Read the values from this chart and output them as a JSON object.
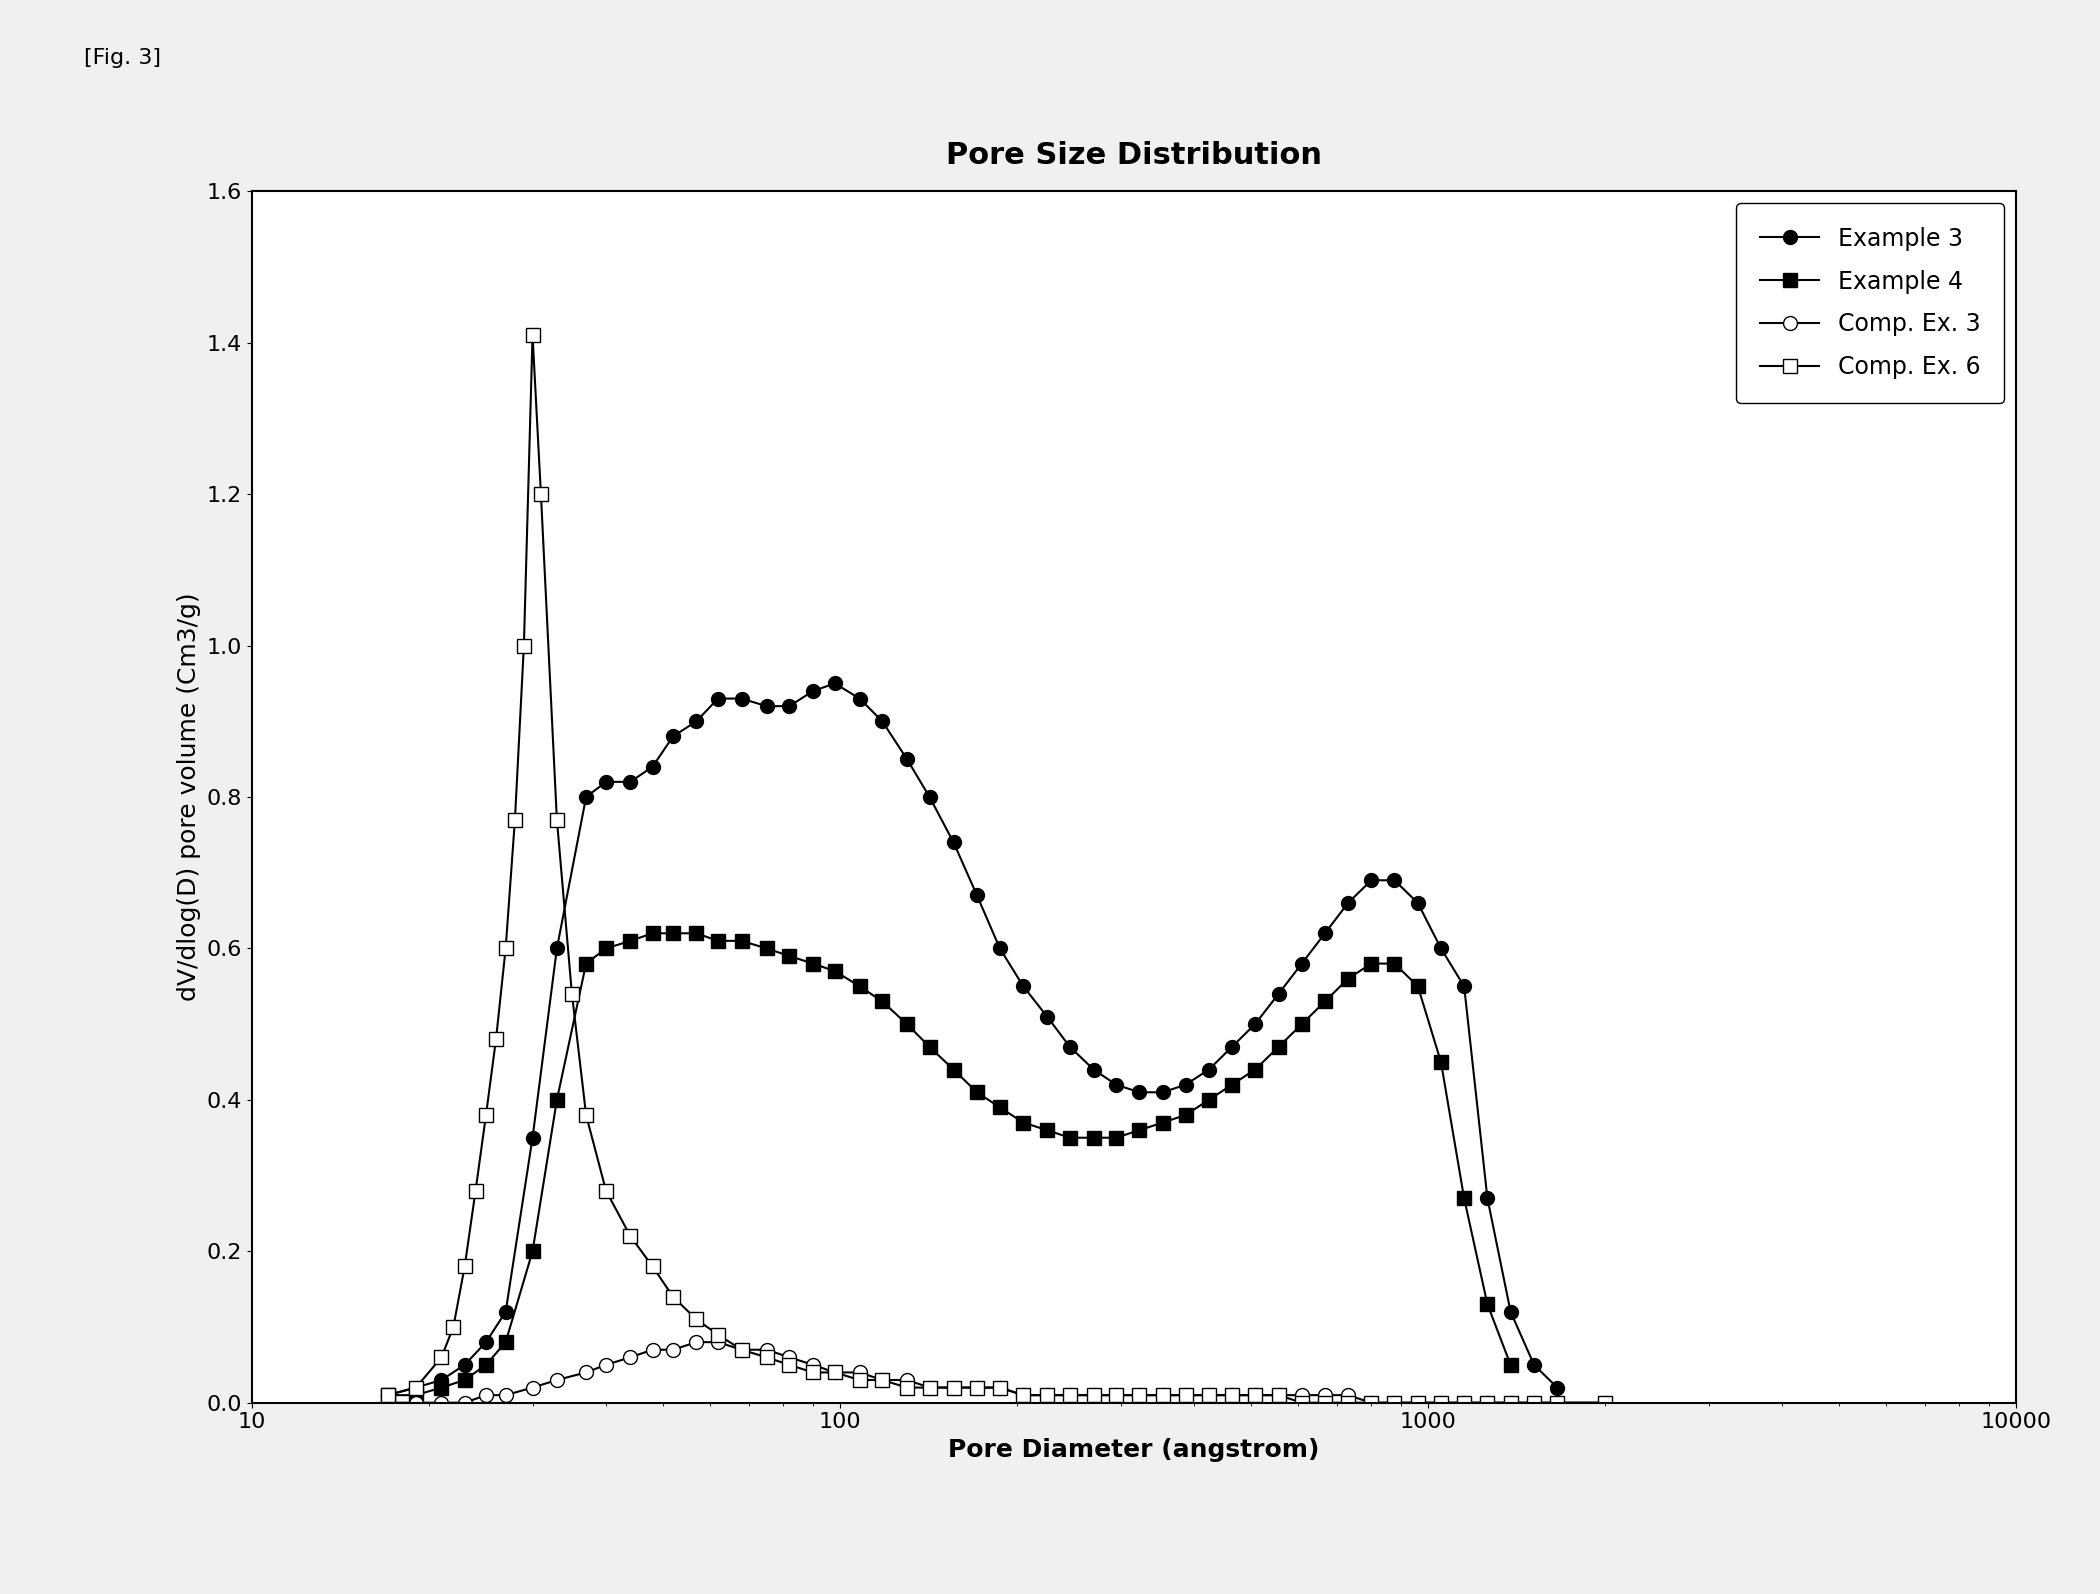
{
  "title": "Pore Size Distribution",
  "fig_label": "[Fig. 3]",
  "xlabel": "Pore Diameter (angstrom)",
  "ylabel": "dV/dlog(D) pore volume (Cm3/g)",
  "xlim": [
    10,
    10000
  ],
  "ylim": [
    0,
    1.6
  ],
  "yticks": [
    0.0,
    0.2,
    0.4,
    0.6,
    0.8,
    1.0,
    1.2,
    1.4,
    1.6
  ],
  "example3_x": [
    17,
    19,
    21,
    23,
    25,
    27,
    30,
    33,
    37,
    40,
    44,
    48,
    52,
    57,
    62,
    68,
    75,
    82,
    90,
    98,
    108,
    118,
    130,
    142,
    156,
    171,
    187,
    205,
    225,
    246,
    270,
    295,
    323,
    354,
    387,
    424,
    464,
    508,
    557,
    610,
    668,
    731,
    801,
    877,
    961,
    1052,
    1152,
    1262,
    1382,
    1515,
    1659
  ],
  "example3_y": [
    0.01,
    0.02,
    0.03,
    0.05,
    0.08,
    0.12,
    0.35,
    0.6,
    0.8,
    0.82,
    0.82,
    0.84,
    0.88,
    0.9,
    0.93,
    0.93,
    0.92,
    0.92,
    0.94,
    0.95,
    0.93,
    0.9,
    0.85,
    0.8,
    0.74,
    0.67,
    0.6,
    0.55,
    0.51,
    0.47,
    0.44,
    0.42,
    0.41,
    0.41,
    0.42,
    0.44,
    0.47,
    0.5,
    0.54,
    0.58,
    0.62,
    0.66,
    0.69,
    0.69,
    0.66,
    0.6,
    0.55,
    0.27,
    0.12,
    0.05,
    0.02
  ],
  "example4_x": [
    17,
    19,
    21,
    23,
    25,
    27,
    30,
    33,
    37,
    40,
    44,
    48,
    52,
    57,
    62,
    68,
    75,
    82,
    90,
    98,
    108,
    118,
    130,
    142,
    156,
    171,
    187,
    205,
    225,
    246,
    270,
    295,
    323,
    354,
    387,
    424,
    464,
    508,
    557,
    610,
    668,
    731,
    801,
    877,
    961,
    1052,
    1152,
    1262,
    1382
  ],
  "example4_y": [
    0.01,
    0.01,
    0.02,
    0.03,
    0.05,
    0.08,
    0.2,
    0.4,
    0.58,
    0.6,
    0.61,
    0.62,
    0.62,
    0.62,
    0.61,
    0.61,
    0.6,
    0.59,
    0.58,
    0.57,
    0.55,
    0.53,
    0.5,
    0.47,
    0.44,
    0.41,
    0.39,
    0.37,
    0.36,
    0.35,
    0.35,
    0.35,
    0.36,
    0.37,
    0.38,
    0.4,
    0.42,
    0.44,
    0.47,
    0.5,
    0.53,
    0.56,
    0.58,
    0.58,
    0.55,
    0.45,
    0.27,
    0.13,
    0.05
  ],
  "comp3_x": [
    17,
    19,
    21,
    23,
    25,
    27,
    30,
    33,
    37,
    40,
    44,
    48,
    52,
    57,
    62,
    68,
    75,
    82,
    90,
    98,
    108,
    118,
    130,
    142,
    156,
    171,
    187,
    205,
    225,
    246,
    270,
    295,
    323,
    354,
    387,
    424,
    464,
    508,
    557,
    610,
    668,
    731,
    801,
    877,
    961,
    1052,
    1152,
    1262,
    1382,
    1515,
    1659,
    2000
  ],
  "comp3_y": [
    0.0,
    0.0,
    0.0,
    0.0,
    0.01,
    0.01,
    0.02,
    0.03,
    0.04,
    0.05,
    0.06,
    0.07,
    0.07,
    0.08,
    0.08,
    0.07,
    0.07,
    0.06,
    0.05,
    0.04,
    0.04,
    0.03,
    0.03,
    0.02,
    0.02,
    0.02,
    0.02,
    0.01,
    0.01,
    0.01,
    0.01,
    0.01,
    0.01,
    0.01,
    0.01,
    0.01,
    0.01,
    0.01,
    0.01,
    0.01,
    0.01,
    0.01,
    0.0,
    0.0,
    0.0,
    0.0,
    0.0,
    0.0,
    0.0,
    0.0,
    0.0,
    0.0
  ],
  "comp6_x": [
    17,
    19,
    21,
    22,
    23,
    24,
    25,
    26,
    27,
    28,
    29,
    30,
    31,
    33,
    35,
    37,
    40,
    44,
    48,
    52,
    57,
    62,
    68,
    75,
    82,
    90,
    98,
    108,
    118,
    130,
    142,
    156,
    171,
    187,
    205,
    225,
    246,
    270,
    295,
    323,
    354,
    387,
    424,
    464,
    508,
    557,
    610,
    668,
    731,
    801,
    877,
    961,
    1052,
    1152,
    1262,
    1382,
    1515,
    1659,
    2000
  ],
  "comp6_y": [
    0.01,
    0.02,
    0.06,
    0.1,
    0.18,
    0.28,
    0.38,
    0.48,
    0.6,
    0.77,
    1.0,
    1.41,
    1.2,
    0.77,
    0.54,
    0.38,
    0.28,
    0.22,
    0.18,
    0.14,
    0.11,
    0.09,
    0.07,
    0.06,
    0.05,
    0.04,
    0.04,
    0.03,
    0.03,
    0.02,
    0.02,
    0.02,
    0.02,
    0.02,
    0.01,
    0.01,
    0.01,
    0.01,
    0.01,
    0.01,
    0.01,
    0.01,
    0.01,
    0.01,
    0.01,
    0.01,
    0.0,
    0.0,
    0.0,
    0.0,
    0.0,
    0.0,
    0.0,
    0.0,
    0.0,
    0.0,
    0.0,
    0.0,
    0.0
  ],
  "legend_labels": [
    "Example 3",
    "Example 4",
    "Comp. Ex. 3",
    "Comp. Ex. 6"
  ],
  "title_fontsize": 22,
  "label_fontsize": 18,
  "tick_fontsize": 16,
  "legend_fontsize": 17,
  "background_color": "#f0f0f0"
}
